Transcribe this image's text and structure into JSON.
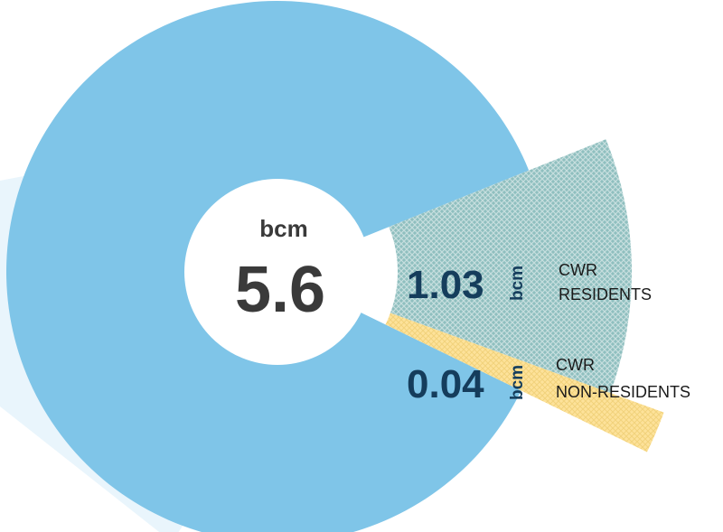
{
  "chart_data": {
    "type": "pie",
    "center_label": {
      "unit": "bcm",
      "value": "5.6"
    },
    "slices": [
      {
        "value_label": "5.6",
        "value": 5.6,
        "unit": "",
        "label_lines": [],
        "color": "#7fc5e8"
      },
      {
        "value_label": "1.03",
        "value": 1.03,
        "unit": "bcm",
        "label_lines": [
          "CWR",
          "RESIDENTS"
        ],
        "color": "#8fbfbf"
      },
      {
        "value_label": "0.04",
        "value": 0.04,
        "unit": "bcm",
        "label_lines": [
          "CWR",
          "NON-RESIDENTS"
        ],
        "color": "#fde29a"
      }
    ],
    "colors": {
      "main": "#7fc5e8",
      "shadow": "#e9f5fc",
      "residents": "#8fbfbf",
      "residents_hatch": "#b9d6d6",
      "non_residents": "#fde29a",
      "non_residents_hatch": "#f0d27a",
      "center": "#ffffff",
      "value_text": "#153d5c",
      "center_text": "#3a3a3a"
    }
  }
}
